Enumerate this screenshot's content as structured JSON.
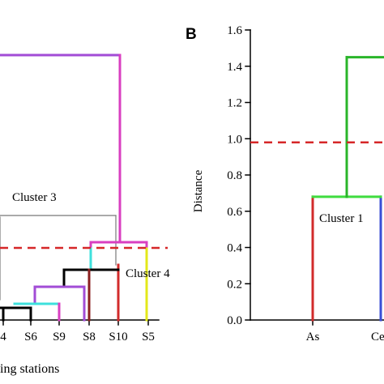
{
  "chart_data": [
    {
      "type": "dendrogram",
      "panel": "",
      "xlabel": "ing stations",
      "leaves": [
        "4",
        "S6",
        "S9",
        "S8",
        "S10",
        "S5"
      ],
      "cut_line": "dashed red",
      "clusters": [
        {
          "label": "Cluster 3"
        },
        {
          "label": "Cluster 4"
        }
      ],
      "colors": {
        "top": "#a24cd6",
        "pink": "#d93fc1",
        "cyan": "#3ee0dc",
        "black": "#000000",
        "red": "#d22b2b",
        "yellow": "#e3e81a",
        "gray": "#777777",
        "dash": "#d62728"
      }
    },
    {
      "type": "dendrogram",
      "panel": "B",
      "ylabel": "Distance",
      "ylim": [
        0.0,
        1.6
      ],
      "yticks": [
        "0.0",
        "0.2",
        "0.4",
        "0.6",
        "0.8",
        "1.0",
        "1.2",
        "1.4",
        "1.6"
      ],
      "leaves": [
        "As",
        "Ce"
      ],
      "cut_height": 0.98,
      "merges": [
        {
          "height": 0.68,
          "label": "Cluster 1"
        },
        {
          "height": 1.45
        }
      ],
      "colors": {
        "leaf_as": "#d22b2b",
        "leaf_ce": "#3a4ed6",
        "merge_low": "#3fdc3f",
        "merge_high": "#2ab52a",
        "dash": "#d62728"
      }
    }
  ]
}
